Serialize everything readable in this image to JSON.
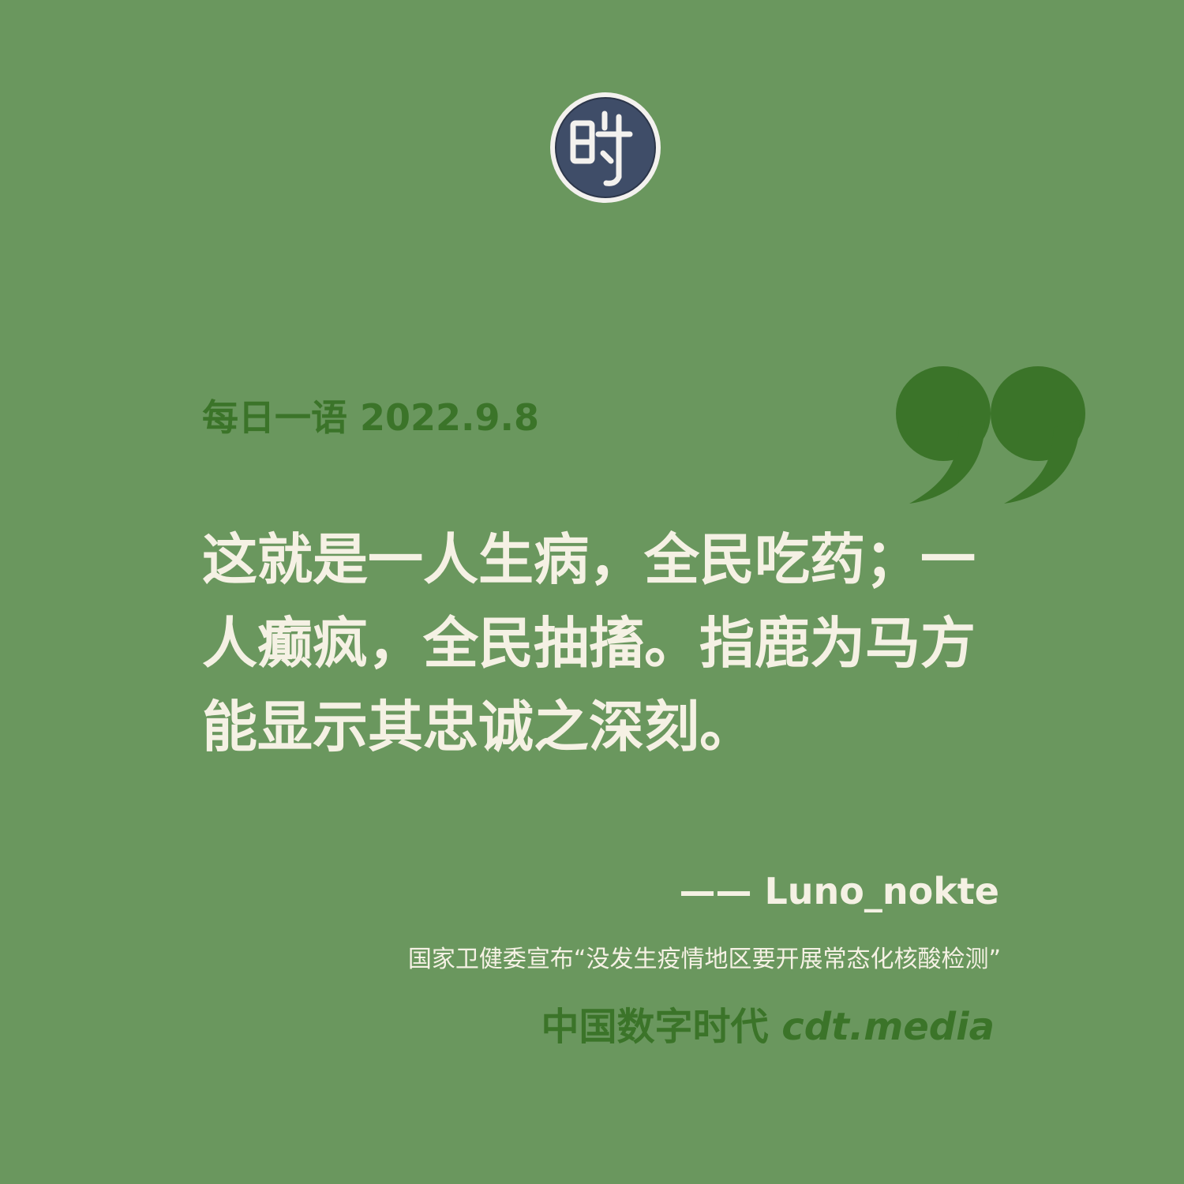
{
  "logo": {
    "icon": "seal-logo-icon",
    "text": "时"
  },
  "header": {
    "label": "每日一语",
    "date": "2022.9.8"
  },
  "quote": {
    "text": "这就是一人生病，全民吃药；一人癫疯，全民抽搐。指鹿为马方能显示其忠诚之深刻。"
  },
  "author": {
    "dash": "——",
    "name": "Luno_nokte"
  },
  "source": {
    "text": "国家卫健委宣布“没发生疫情地区要开展常态化核酸检测”"
  },
  "brand": {
    "name": "中国数字时代",
    "url": "cdt.media"
  },
  "colors": {
    "background": "#6a975e",
    "accent": "#3b7429",
    "text": "#f5f1e4",
    "logo_fill": "#3f4d68"
  }
}
